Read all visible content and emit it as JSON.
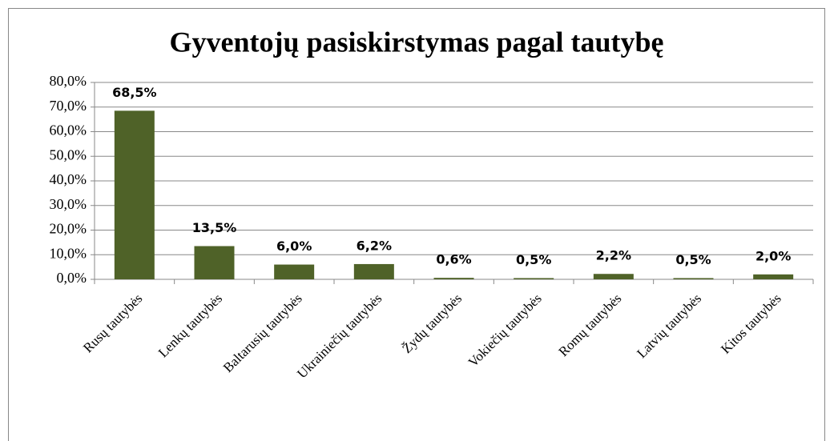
{
  "chart_data": {
    "type": "bar",
    "title": "Gyventojų pasiskirstymas pagal tautybę",
    "categories": [
      "Rusų tautybės",
      "Lenkų tautybės",
      "Baltarusių tautybės",
      "Ukrainiečių tautybės",
      "Žydų tautybės",
      "Vokiečių tautybės",
      "Romų tautybės",
      "Latvių tautybės",
      "Kitos tautybės"
    ],
    "values": [
      68.5,
      13.5,
      6.0,
      6.2,
      0.6,
      0.5,
      2.2,
      0.5,
      2.0
    ],
    "value_labels": [
      "68,5%",
      "13,5%",
      "6,0%",
      "6,2%",
      "0,6%",
      "0,5%",
      "2,2%",
      "0,5%",
      "2,0%"
    ],
    "color": "#4f6228",
    "ylim": [
      0,
      80
    ],
    "yticks": [
      {
        "value": 0,
        "label": "0,0%"
      },
      {
        "value": 10,
        "label": "10,0%"
      },
      {
        "value": 20,
        "label": "20,0%"
      },
      {
        "value": 30,
        "label": "30,0%"
      },
      {
        "value": 40,
        "label": "40,0%"
      },
      {
        "value": 50,
        "label": "50,0%"
      },
      {
        "value": 60,
        "label": "60,0%"
      },
      {
        "value": 70,
        "label": "70,0%"
      },
      {
        "value": 80,
        "label": "80,0%"
      }
    ],
    "grid": true
  }
}
